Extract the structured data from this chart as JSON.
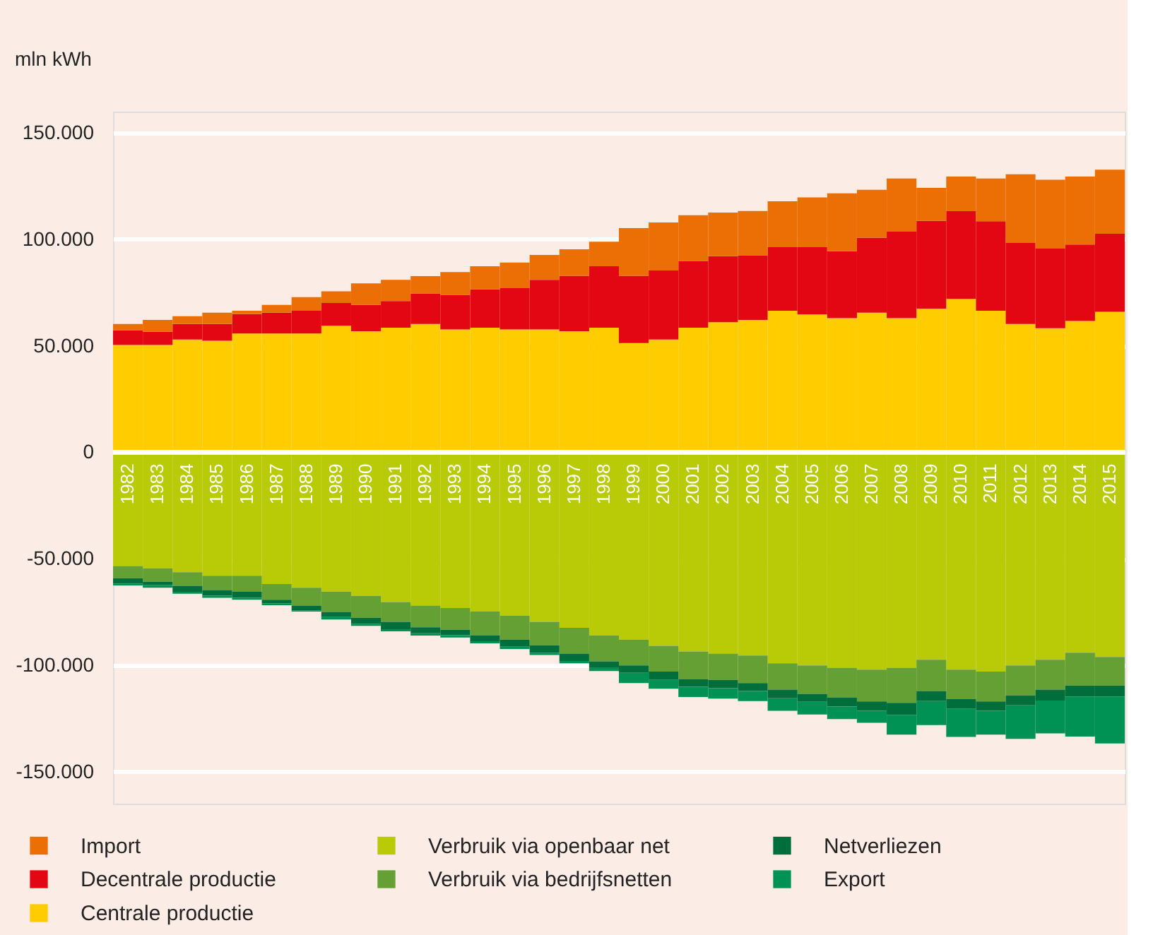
{
  "chart_data": {
    "type": "bar",
    "stacked": true,
    "ylabel": "mln kWh",
    "categories": [
      "1982",
      "1983",
      "1984",
      "1985",
      "1986",
      "1987",
      "1988",
      "1989",
      "1990",
      "1991",
      "1992",
      "1993",
      "1994",
      "1995",
      "1996",
      "1997",
      "1998",
      "1999",
      "2000",
      "2001",
      "2002",
      "2003",
      "2004",
      "2005",
      "2006",
      "2007",
      "2008",
      "2009",
      "2010",
      "2011",
      "2012",
      "2013",
      "2014",
      "2015"
    ],
    "series": [
      {
        "name": "Centrale productie",
        "color": "#ffcc00",
        "values": [
          50400,
          50400,
          53000,
          52400,
          55800,
          55800,
          55800,
          59400,
          56900,
          58500,
          60300,
          57700,
          58500,
          57700,
          57700,
          56900,
          58500,
          51300,
          53000,
          58500,
          61100,
          62200,
          66500,
          64700,
          63000,
          65600,
          63000,
          67500,
          72000,
          66500,
          60300,
          58300,
          61700,
          66000
        ]
      },
      {
        "name": "Decentrale productie",
        "color": "#e30613",
        "values": [
          6900,
          6200,
          7300,
          7900,
          9100,
          9800,
          10700,
          10700,
          12300,
          12500,
          14300,
          16200,
          18000,
          19400,
          23300,
          26000,
          28900,
          31600,
          32400,
          31400,
          31000,
          30300,
          29800,
          31600,
          31400,
          35200,
          40600,
          41200,
          41200,
          42000,
          38000,
          37400,
          35900,
          36600
        ]
      },
      {
        "name": "Import",
        "color": "#ec6f05",
        "values": [
          3000,
          5600,
          3600,
          5300,
          1600,
          3600,
          6400,
          5500,
          10100,
          10000,
          8100,
          10700,
          10900,
          12000,
          11700,
          12400,
          11500,
          22400,
          22500,
          21400,
          20500,
          20800,
          21600,
          23400,
          27200,
          22500,
          25000,
          15500,
          16300,
          20100,
          32300,
          32300,
          31900,
          30100
        ]
      },
      {
        "name": "Verbruik via openbaar net",
        "color": "#b8cb06",
        "values": [
          -53400,
          -54500,
          -56300,
          -58000,
          -58000,
          -61900,
          -63600,
          -65500,
          -67500,
          -70300,
          -72000,
          -73100,
          -74800,
          -76800,
          -79600,
          -82400,
          -86100,
          -88000,
          -90900,
          -93500,
          -94500,
          -95400,
          -99100,
          -100100,
          -101200,
          -102100,
          -101200,
          -97400,
          -102100,
          -103000,
          -100100,
          -97400,
          -94100,
          -96100
        ]
      },
      {
        "name": "Verbruik via bedrijfsnetten",
        "color": "#64a034",
        "values": [
          -5700,
          -6300,
          -6400,
          -6700,
          -7500,
          -7300,
          -8400,
          -9500,
          -10200,
          -9300,
          -10200,
          -10200,
          -11100,
          -11200,
          -11000,
          -12100,
          -12100,
          -12100,
          -12100,
          -13100,
          -12400,
          -13000,
          -12300,
          -13300,
          -13900,
          -14900,
          -16500,
          -14700,
          -13800,
          -14000,
          -14100,
          -14000,
          -15400,
          -13400
        ]
      },
      {
        "name": "Netverliezen",
        "color": "#006e3a",
        "values": [
          -2500,
          -1500,
          -2800,
          -2600,
          -2800,
          -1700,
          -2200,
          -2400,
          -2800,
          -3500,
          -2800,
          -2600,
          -2800,
          -3300,
          -3500,
          -3500,
          -2800,
          -3500,
          -3900,
          -3500,
          -3900,
          -3700,
          -4100,
          -3800,
          -4300,
          -4400,
          -5600,
          -4700,
          -4600,
          -4400,
          -4600,
          -5200,
          -5200,
          -5200
        ]
      },
      {
        "name": "Export",
        "color": "#009155",
        "values": [
          -900,
          -1300,
          -900,
          -1000,
          -900,
          -900,
          -600,
          -1100,
          -1000,
          -1000,
          -1100,
          -1100,
          -1000,
          -1100,
          -1100,
          -1100,
          -1700,
          -4800,
          -4100,
          -4800,
          -4900,
          -4700,
          -5900,
          -5900,
          -5900,
          -5600,
          -9300,
          -11300,
          -13200,
          -11200,
          -15800,
          -15400,
          -18800,
          -22000
        ]
      }
    ],
    "ylim": [
      -165000,
      160000
    ],
    "yticks": [
      {
        "value": 150000,
        "label": "150.000"
      },
      {
        "value": 100000,
        "label": "100.000"
      },
      {
        "value": 50000,
        "label": "50.000"
      },
      {
        "value": 0,
        "label": "0"
      },
      {
        "value": -50000,
        "label": "-50.000"
      },
      {
        "value": -100000,
        "label": "-100.000"
      },
      {
        "value": -150000,
        "label": "-150.000"
      }
    ],
    "grid": "y",
    "legend": "bottom"
  }
}
